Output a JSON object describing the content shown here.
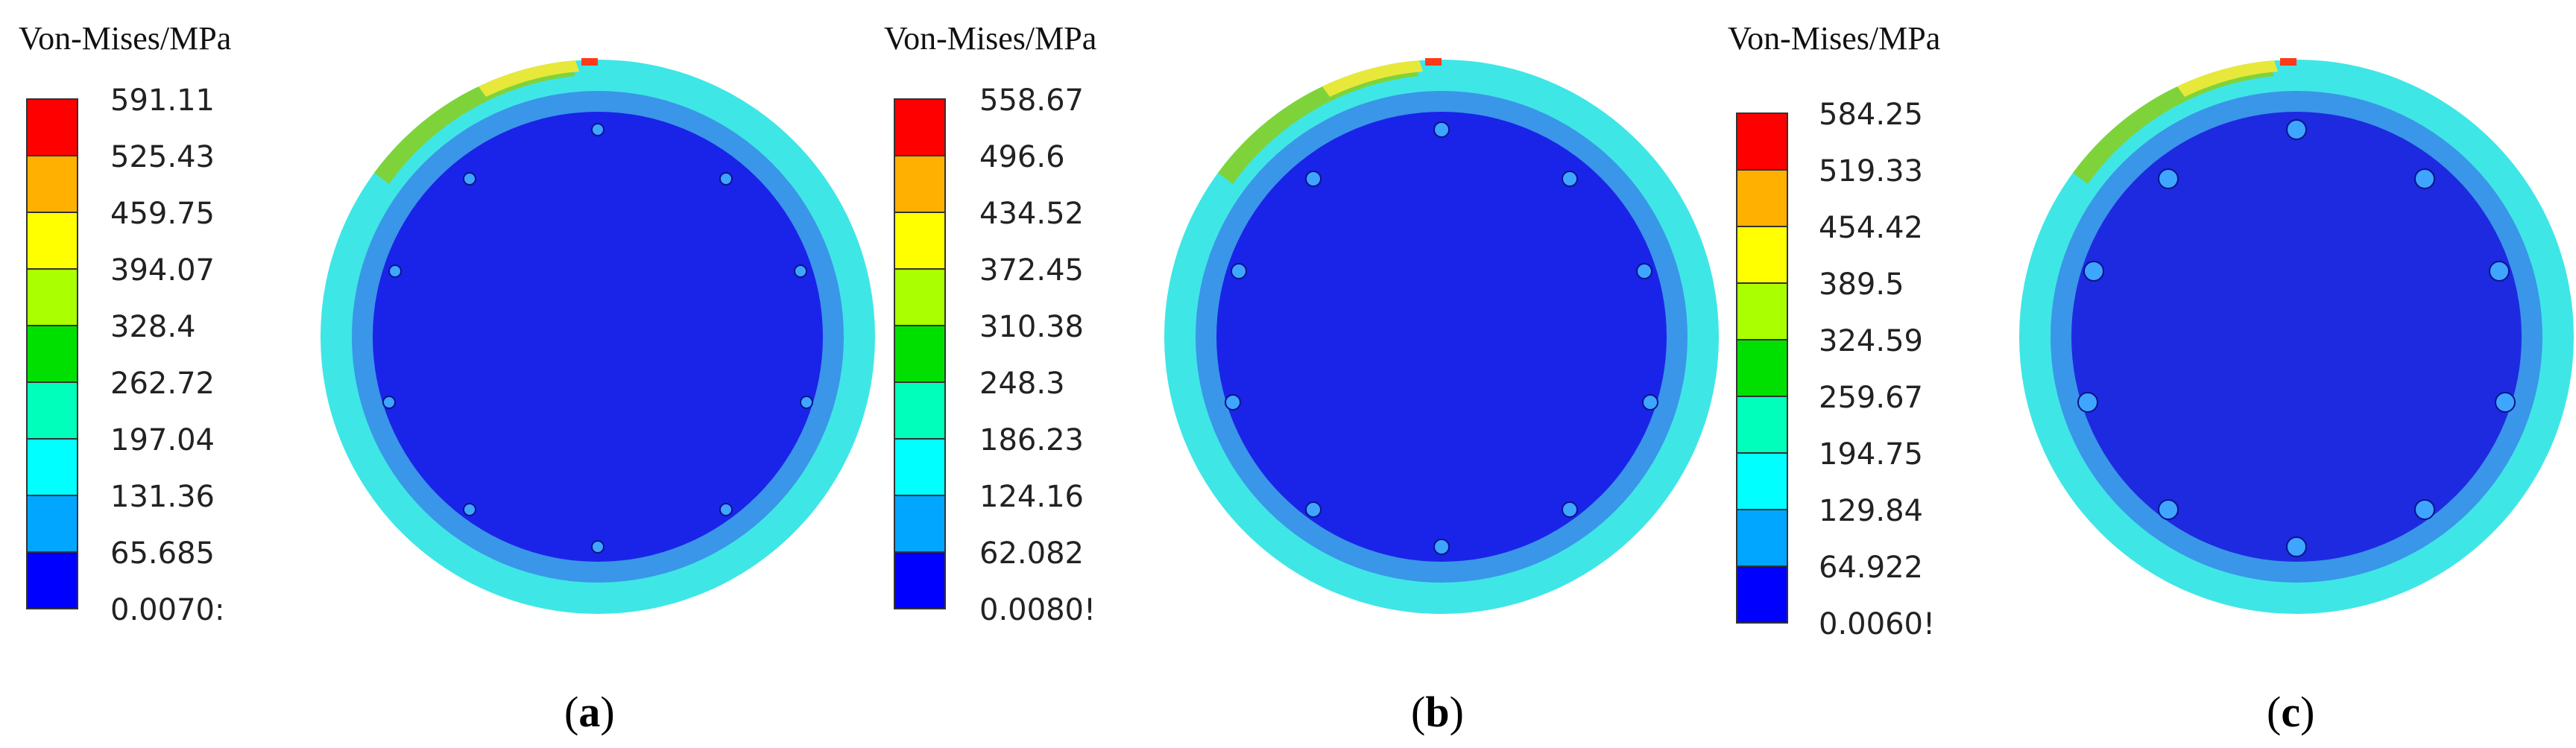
{
  "colors": {
    "scale": [
      "#0000ff",
      "#00a6ff",
      "#00ffff",
      "#00ffbb",
      "#00e000",
      "#aaff00",
      "#ffff00",
      "#ffb000",
      "#ff0000"
    ],
    "core": "#1a24e8",
    "inner_ring": "#3a96e8",
    "outer_ring": "#3fe6e6",
    "hot_green": "#7fd33a",
    "hot_yellow": "#e8e83a",
    "hot_red": "#ff3a1a"
  },
  "panels": [
    {
      "id": "a",
      "legend_title": "Von-Mises/MPa",
      "ticks": [
        "591.11",
        "525.43",
        "459.75",
        "394.07",
        "328.4",
        "262.72",
        "197.04",
        "131.36",
        "65.685",
        "0.0070:"
      ],
      "caption_open": "(",
      "caption_letter": "a",
      "caption_close": ")"
    },
    {
      "id": "b",
      "legend_title": "Von-Mises/MPa",
      "ticks": [
        "558.67",
        "496.6",
        "434.52",
        "372.45",
        "310.38",
        "248.3",
        "186.23",
        "124.16",
        "62.082",
        "0.0080!"
      ],
      "caption_open": "(",
      "caption_letter": "b",
      "caption_close": ")"
    },
    {
      "id": "c",
      "legend_title": "Von-Mises/MPa",
      "ticks": [
        "584.25",
        "519.33",
        "454.42",
        "389.5",
        "324.59",
        "259.67",
        "194.75",
        "129.84",
        "64.922",
        "0.0060!"
      ],
      "caption_open": "(",
      "caption_letter": "c",
      "caption_close": ")"
    }
  ]
}
